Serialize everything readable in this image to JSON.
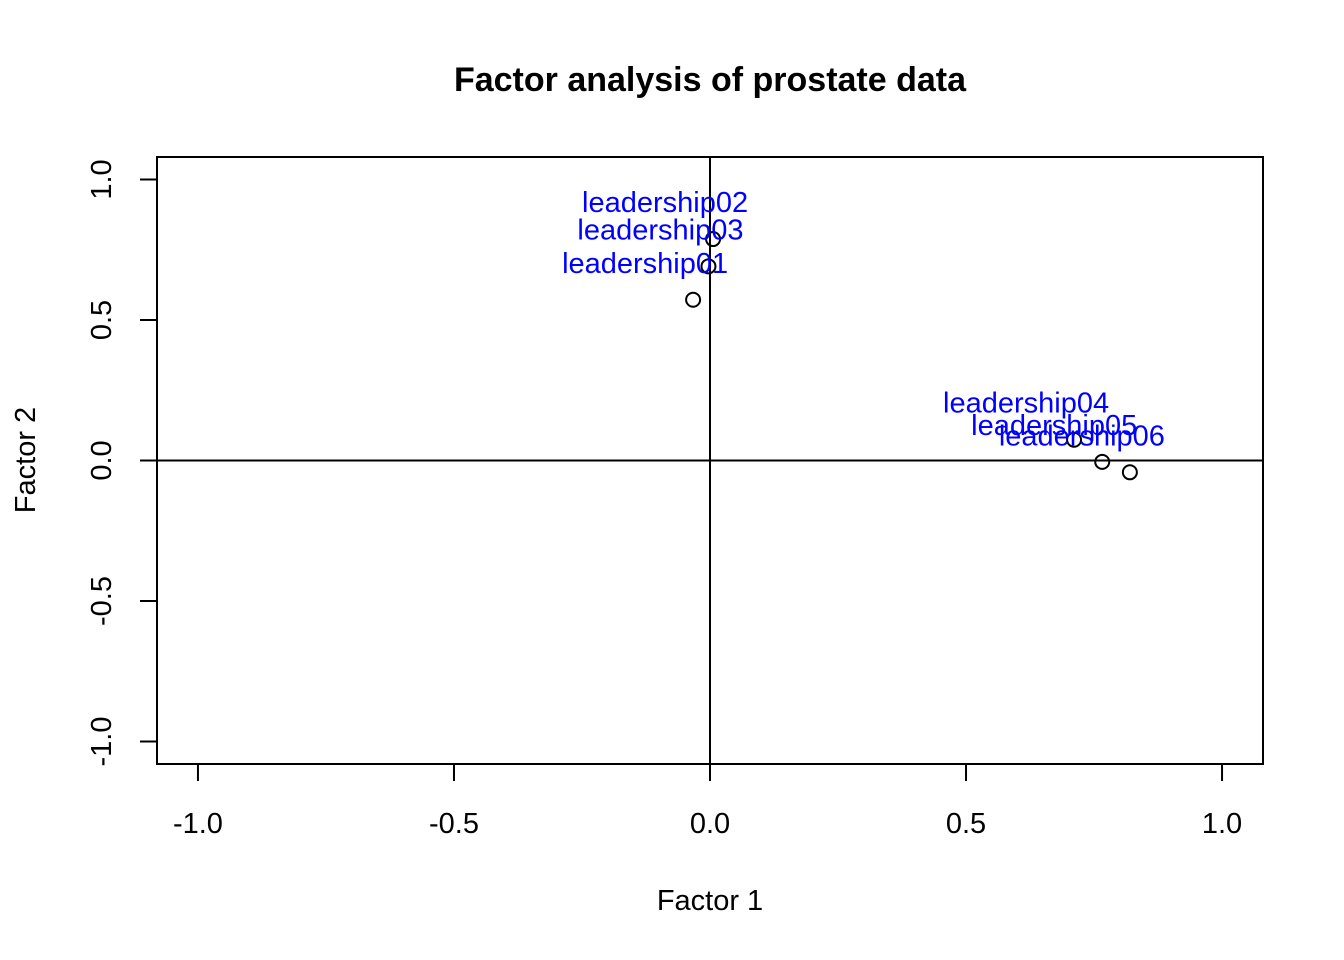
{
  "chart_data": {
    "type": "scatter",
    "title": "Factor analysis of prostate data",
    "xlabel": "Factor 1",
    "ylabel": "Factor 2",
    "xlim": [
      -1.08,
      1.08
    ],
    "ylim": [
      -1.08,
      1.08
    ],
    "x_ticks": [
      -1.0,
      -0.5,
      0.0,
      0.5,
      1.0
    ],
    "x_tick_labels": [
      "-1.0",
      "-0.5",
      "0.0",
      "0.5",
      "1.0"
    ],
    "y_ticks": [
      -1.0,
      -0.5,
      0.0,
      0.5,
      1.0
    ],
    "y_tick_labels": [
      "-1.0",
      "-0.5",
      "0.0",
      "0.5",
      "1.0"
    ],
    "reference_lines": {
      "x": 0,
      "y": 0
    },
    "grid": false,
    "label_color": "#0000ff",
    "points": [
      {
        "label": "leadership01",
        "x": -0.033,
        "y": 0.572
      },
      {
        "label": "leadership02",
        "x": 0.006,
        "y": 0.788
      },
      {
        "label": "leadership03",
        "x": -0.003,
        "y": 0.691
      },
      {
        "label": "leadership04",
        "x": 0.711,
        "y": 0.074
      },
      {
        "label": "leadership05",
        "x": 0.766,
        "y": -0.005
      },
      {
        "label": "leadership06",
        "x": 0.82,
        "y": -0.042
      }
    ]
  }
}
